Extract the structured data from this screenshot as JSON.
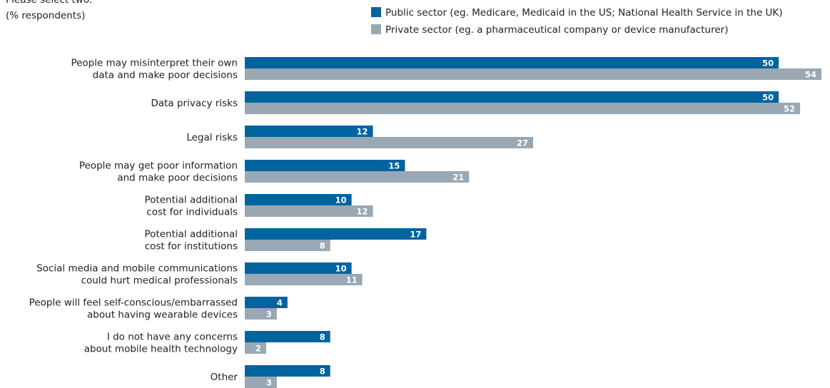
{
  "chart_data": {
    "type": "bar",
    "orientation": "horizontal",
    "subtitle": "Please select two.",
    "unit_label": "(% respondents)",
    "categories": [
      [
        "People may misinterpret their own",
        "data and make poor decisions"
      ],
      [
        "Data privacy risks"
      ],
      [
        "Legal risks"
      ],
      [
        "People may get poor information",
        "and make poor decisions"
      ],
      [
        "Potential additional",
        "cost for individuals"
      ],
      [
        "Potential additional",
        "cost for institutions"
      ],
      [
        "Social media and mobile communications",
        "could hurt medical professionals"
      ],
      [
        "People will feel self-conscious/embarrassed",
        "about having wearable devices"
      ],
      [
        "I do not have any concerns",
        "about mobile health technology"
      ],
      [
        "Other"
      ]
    ],
    "series": [
      {
        "name": "Public sector (eg. Medicare, Medicaid in the US; National Health Service in the UK)",
        "color": "#00649f",
        "values": [
          50,
          50,
          12,
          15,
          10,
          17,
          10,
          4,
          8,
          8
        ]
      },
      {
        "name": "Private sector (eg. a pharmaceutical company or device manufacturer)",
        "color": "#9aa8b4",
        "values": [
          54,
          52,
          27,
          21,
          12,
          8,
          11,
          3,
          2,
          3
        ]
      }
    ]
  }
}
